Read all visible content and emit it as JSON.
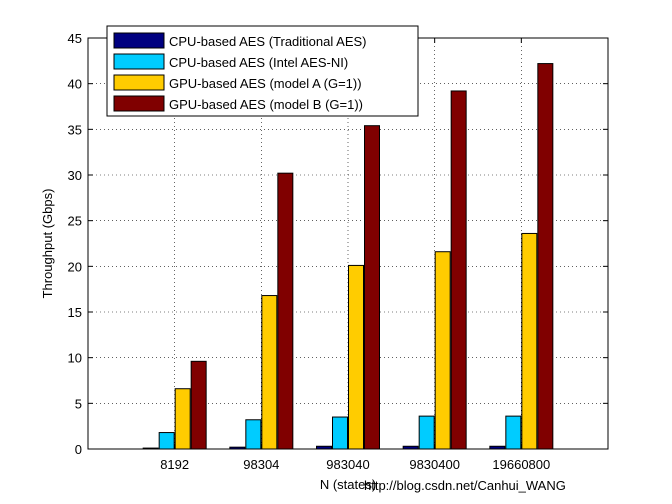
{
  "chart_data": {
    "type": "bar",
    "title": "",
    "xlabel": "N (states)",
    "ylabel": "Throughput (Gbps)",
    "ylim": [
      0,
      45
    ],
    "yticks": [
      0,
      5,
      10,
      15,
      20,
      25,
      30,
      35,
      40,
      45
    ],
    "grid": true,
    "legend_position": "top-left",
    "categories": [
      "8192",
      "98304",
      "983040",
      "9830400",
      "19660800"
    ],
    "series": [
      {
        "name": "CPU-based AES (Traditional AES)",
        "color": "#000080",
        "values": [
          0.1,
          0.2,
          0.3,
          0.3,
          0.3
        ]
      },
      {
        "name": "CPU-based AES (Intel AES-NI)",
        "color": "#00CCFF",
        "values": [
          1.8,
          3.2,
          3.5,
          3.6,
          3.6
        ]
      },
      {
        "name": "GPU-based AES (model A (G=1))",
        "color": "#FFCC00",
        "values": [
          6.6,
          16.8,
          20.1,
          21.6,
          23.6
        ]
      },
      {
        "name": "GPU-based AES (model B (G=1))",
        "color": "#800000",
        "values": [
          9.6,
          30.2,
          35.4,
          39.2,
          42.2
        ]
      }
    ]
  },
  "watermark": "http://blog.csdn.net/Canhui_WANG"
}
